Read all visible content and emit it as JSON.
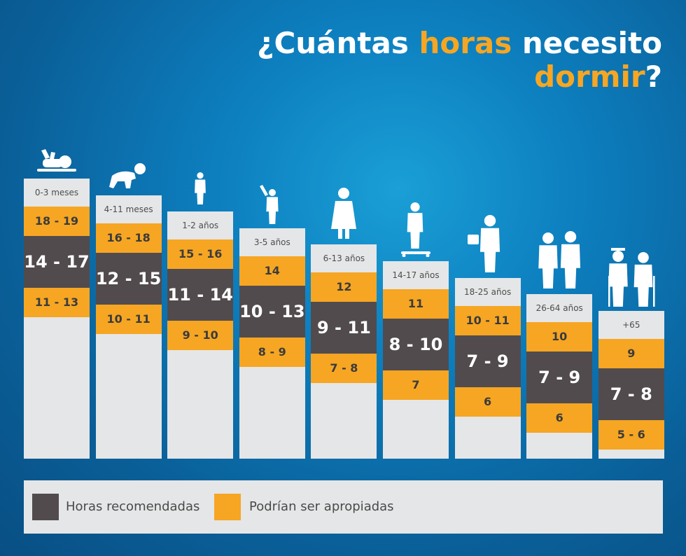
{
  "title": {
    "line1_prefix": "¿Cuántas ",
    "line1_highlight": "horas",
    "line1_suffix": " necesito",
    "line2_highlight": "dormir",
    "line2_suffix": "?"
  },
  "colors": {
    "recommended": "#514b4e",
    "appropriate": "#f6a623",
    "background": "#0d7fbf",
    "panel": "#e5e6e7"
  },
  "legend": {
    "recommended_label": "Horas recomendadas",
    "appropriate_label": "Podrían ser apropiadas"
  },
  "chart_data": {
    "type": "table",
    "title": "¿Cuántas horas necesito dormir?",
    "columns": [
      "group",
      "upper_appropriate",
      "recommended",
      "lower_appropriate"
    ],
    "groups": [
      {
        "label": "0-3 meses",
        "icon": "baby-lying-icon",
        "upper": "18 - 19",
        "recommended": "14 - 17",
        "lower": "11 - 13"
      },
      {
        "label": "4-11 meses",
        "icon": "baby-crawling-icon",
        "upper": "16 - 18",
        "recommended": "12 - 15",
        "lower": "10 - 11"
      },
      {
        "label": "1-2 años",
        "icon": "toddler-icon",
        "upper": "15 - 16",
        "recommended": "11 - 14",
        "lower": "9 - 10"
      },
      {
        "label": "3-5 años",
        "icon": "child-waving-icon",
        "upper": "14",
        "recommended": "10 - 13",
        "lower": "8 - 9"
      },
      {
        "label": "6-13 años",
        "icon": "girl-icon",
        "upper": "12",
        "recommended": "9 - 11",
        "lower": "7 - 8"
      },
      {
        "label": "14-17 años",
        "icon": "teen-skating-icon",
        "upper": "11",
        "recommended": "8 - 10",
        "lower": "7"
      },
      {
        "label": "18-25 años",
        "icon": "man-walking-icon",
        "upper": "10 - 11",
        "recommended": "7 - 9",
        "lower": "6"
      },
      {
        "label": "26-64 años",
        "icon": "adult-couple-icon",
        "upper": "10",
        "recommended": "7 - 9",
        "lower": "6"
      },
      {
        "label": "+65",
        "icon": "elderly-couple-icon",
        "upper": "9",
        "recommended": "7 - 8",
        "lower": "5 - 6"
      }
    ]
  }
}
